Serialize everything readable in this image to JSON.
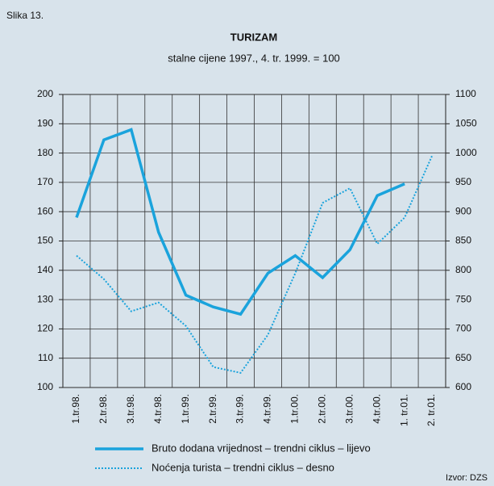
{
  "chart_data": {
    "type": "line",
    "label": "Slika 13.",
    "title": "TURIZAM",
    "subtitle": "stalne cijene 1997., 4. tr. 1999. = 100",
    "source": "Izvor: DZS",
    "categories": [
      "1.tr.98.",
      "2.tr.98.",
      "3.tr.98.",
      "4.tr.98.",
      "1.tr.99.",
      "2.tr.99.",
      "3.tr.99.",
      "4.tr.99.",
      "1.tr.00.",
      "2.tr.00.",
      "3.tr.00.",
      "4.tr.00.",
      "1. tr.01.",
      "2. tr.01."
    ],
    "series": [
      {
        "name": "Bruto dodana vrijednost – trendni ciklus – lijevo",
        "color": "#1aa3dc",
        "style": "solid",
        "values": [
          158,
          184.5,
          188,
          153,
          131.5,
          127.5,
          125,
          139,
          145,
          137.5,
          147,
          165.5,
          169.5,
          null
        ]
      },
      {
        "name": "Noćenja turista – trendni ciklus – desno",
        "color": "#1aa3dc",
        "style": "dotted",
        "axis": "y2",
        "values": [
          825,
          785,
          730,
          745,
          705,
          635,
          625,
          690,
          795,
          915,
          940,
          845,
          890,
          995
        ]
      }
    ],
    "ylim": [
      100,
      200
    ],
    "yticks": [
      100,
      110,
      120,
      130,
      140,
      150,
      160,
      170,
      180,
      190,
      200
    ],
    "y2lim": [
      600,
      1100
    ],
    "y2ticks": [
      600,
      650,
      700,
      750,
      800,
      850,
      900,
      950,
      1000,
      1050,
      1100
    ],
    "grid": true
  }
}
